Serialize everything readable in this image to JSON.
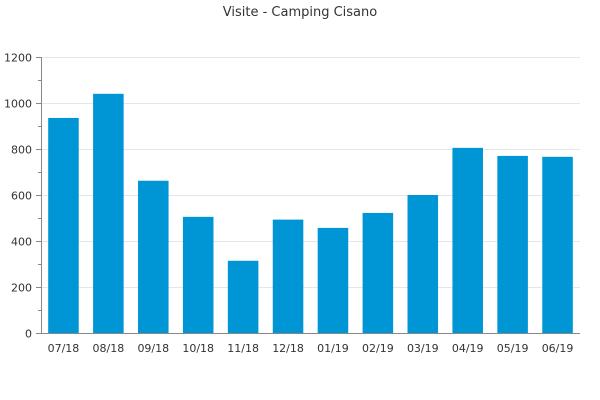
{
  "chart_data": {
    "type": "bar",
    "title": "Visite - Camping Cisano",
    "xlabel": "",
    "ylabel": "",
    "categories": [
      "07/18",
      "08/18",
      "09/18",
      "10/18",
      "11/18",
      "12/18",
      "01/19",
      "02/19",
      "03/19",
      "04/19",
      "05/19",
      "06/19"
    ],
    "values": [
      935,
      1040,
      662,
      505,
      314,
      493,
      457,
      522,
      600,
      805,
      770,
      766
    ],
    "ylim": [
      0,
      1200
    ],
    "yticks": [
      "0",
      "200",
      "400",
      "600",
      "800",
      "1000",
      "1200"
    ],
    "grid": true,
    "legend": "none",
    "bar_color": "#0096D6"
  }
}
